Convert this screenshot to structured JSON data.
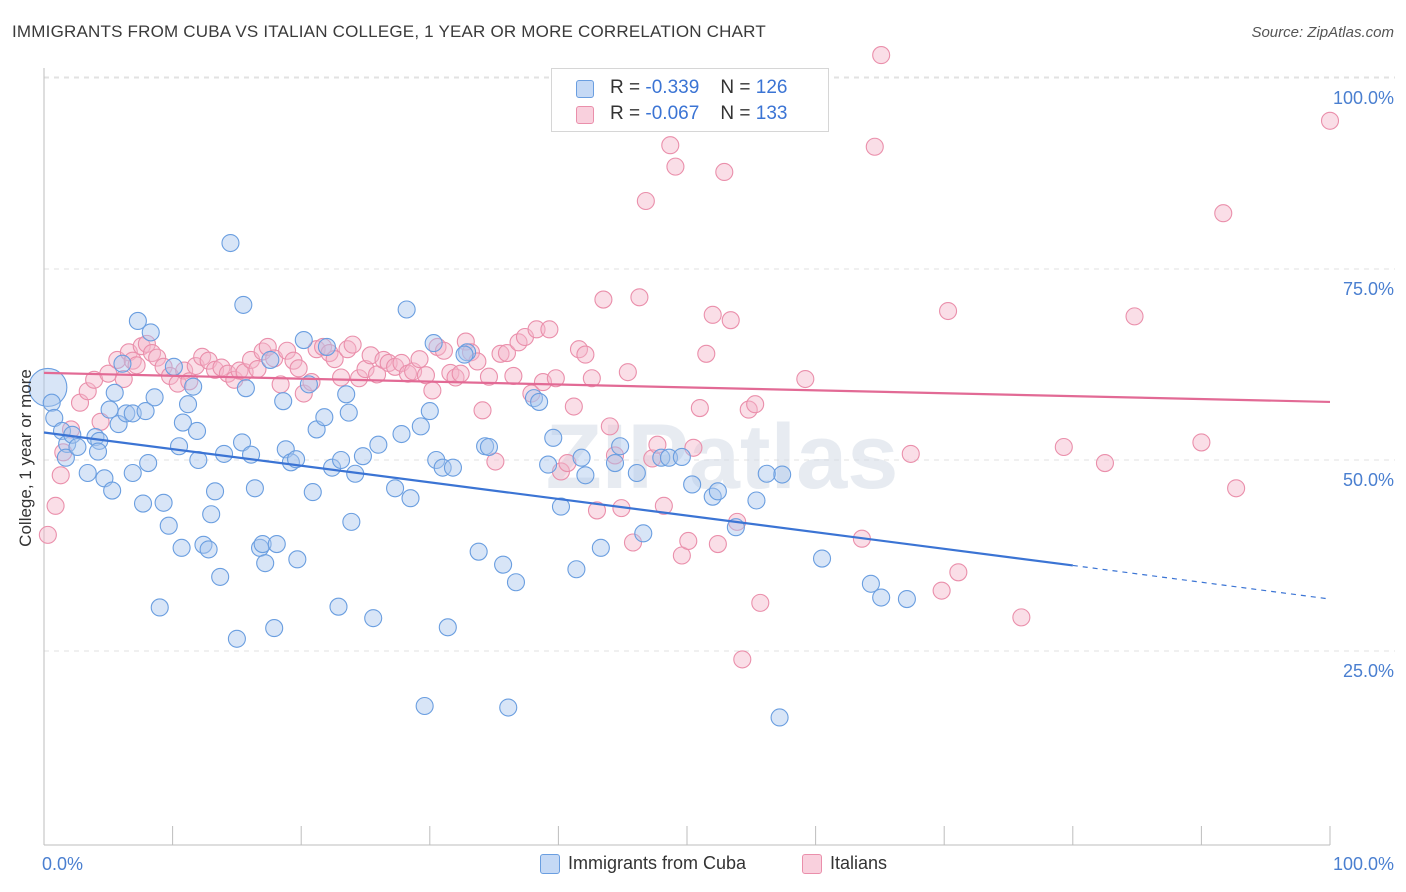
{
  "header": {
    "title": "IMMIGRANTS FROM CUBA VS ITALIAN COLLEGE, 1 YEAR OR MORE CORRELATION CHART",
    "source": "Source: ZipAtlas.com"
  },
  "legend": {
    "rows": [
      {
        "r_label": "R =",
        "r_value": "-0.339",
        "n_label": "N =",
        "n_value": "126"
      },
      {
        "r_label": "R =",
        "r_value": "-0.067",
        "n_label": "N =",
        "n_value": "133"
      }
    ]
  },
  "bottom_legend": [
    "Immigrants from Cuba",
    "Italians"
  ],
  "colors": {
    "blue_fill": "#a9c6ee",
    "blue_stroke": "#6a9ee0",
    "blue_line": "#3b74d4",
    "pink_fill": "#f5b5c9",
    "pink_stroke": "#ea8fab",
    "pink_line": "#e26a95",
    "tick_label": "#4a7fd0",
    "grid": "#e2e2e2"
  },
  "chart_data": {
    "type": "scatter",
    "title": "IMMIGRANTS FROM CUBA VS ITALIAN COLLEGE, 1 YEAR OR MORE CORRELATION CHART",
    "xlabel": "",
    "ylabel": "College, 1 year or more",
    "xlim": [
      0,
      100
    ],
    "ylim": [
      0,
      103
    ],
    "x_tick_labels": [
      "0.0%",
      "100.0%"
    ],
    "y_ticks": [
      25,
      50,
      75,
      100
    ],
    "y_tick_labels": [
      "25.0%",
      "50.0%",
      "75.0%",
      "100.0%"
    ],
    "grid": true,
    "legend_position": "top-center",
    "watermark": "ZIPatlas",
    "series": [
      {
        "name": "Immigrants from Cuba",
        "color": "#6a9ee0",
        "trend": {
          "x0": 0,
          "y0": 53.6,
          "x1": 80,
          "y1": 36.2,
          "dashed_to_x": 100,
          "dashed_y1": 31.8
        },
        "points": [
          [
            0.3,
            59.5
          ],
          [
            0.6,
            57.5
          ],
          [
            0.8,
            55.5
          ],
          [
            1.4,
            53.8
          ],
          [
            1.8,
            52.1
          ],
          [
            1.7,
            50.3
          ],
          [
            2.2,
            53.3
          ],
          [
            2.6,
            51.7
          ],
          [
            3.4,
            48.3
          ],
          [
            4.0,
            53.0
          ],
          [
            4.3,
            52.5
          ],
          [
            4.2,
            51.1
          ],
          [
            4.7,
            47.6
          ],
          [
            5.1,
            56.6
          ],
          [
            5.3,
            46.0
          ],
          [
            5.5,
            58.8
          ],
          [
            5.8,
            54.7
          ],
          [
            6.1,
            62.6
          ],
          [
            6.4,
            56.1
          ],
          [
            6.9,
            56.1
          ],
          [
            6.9,
            48.3
          ],
          [
            7.3,
            68.2
          ],
          [
            7.7,
            44.3
          ],
          [
            7.9,
            56.4
          ],
          [
            8.1,
            49.6
          ],
          [
            8.3,
            66.7
          ],
          [
            8.6,
            58.2
          ],
          [
            9.0,
            30.7
          ],
          [
            9.3,
            44.4
          ],
          [
            9.7,
            41.4
          ],
          [
            10.1,
            62.2
          ],
          [
            10.5,
            51.8
          ],
          [
            10.7,
            38.5
          ],
          [
            10.8,
            54.9
          ],
          [
            11.2,
            57.3
          ],
          [
            11.9,
            53.8
          ],
          [
            12.0,
            50.0
          ],
          [
            12.4,
            38.9
          ],
          [
            12.8,
            38.3
          ],
          [
            13.0,
            42.9
          ],
          [
            13.3,
            45.9
          ],
          [
            13.7,
            34.7
          ],
          [
            14.0,
            50.8
          ],
          [
            14.5,
            78.4
          ],
          [
            15.0,
            26.6
          ],
          [
            15.4,
            52.3
          ],
          [
            15.5,
            70.3
          ],
          [
            15.7,
            59.4
          ],
          [
            16.1,
            50.7
          ],
          [
            16.4,
            46.3
          ],
          [
            16.8,
            38.5
          ],
          [
            17.0,
            39.0
          ],
          [
            17.2,
            36.5
          ],
          [
            17.6,
            63.1
          ],
          [
            17.9,
            28.0
          ],
          [
            18.1,
            39.0
          ],
          [
            18.6,
            57.7
          ],
          [
            18.8,
            51.4
          ],
          [
            19.2,
            49.7
          ],
          [
            19.6,
            50.1
          ],
          [
            19.7,
            37.0
          ],
          [
            20.2,
            65.7
          ],
          [
            20.6,
            59.9
          ],
          [
            20.9,
            45.8
          ],
          [
            21.2,
            54.0
          ],
          [
            21.8,
            55.6
          ],
          [
            22.0,
            64.8
          ],
          [
            22.4,
            49.0
          ],
          [
            22.9,
            30.8
          ],
          [
            23.1,
            50.0
          ],
          [
            23.5,
            58.6
          ],
          [
            23.7,
            56.2
          ],
          [
            23.9,
            41.9
          ],
          [
            24.2,
            48.2
          ],
          [
            24.8,
            50.5
          ],
          [
            25.6,
            29.3
          ],
          [
            26.0,
            52.0
          ],
          [
            27.3,
            46.3
          ],
          [
            27.8,
            53.4
          ],
          [
            28.2,
            69.7
          ],
          [
            28.5,
            45.0
          ],
          [
            29.6,
            17.8
          ],
          [
            29.3,
            54.4
          ],
          [
            30.0,
            56.4
          ],
          [
            30.3,
            65.3
          ],
          [
            30.5,
            50.0
          ],
          [
            31.0,
            49.0
          ],
          [
            31.4,
            28.1
          ],
          [
            31.8,
            49.0
          ],
          [
            32.9,
            64.1
          ],
          [
            32.7,
            63.8
          ],
          [
            33.8,
            38.0
          ],
          [
            34.3,
            51.8
          ],
          [
            34.6,
            51.7
          ],
          [
            35.7,
            36.3
          ],
          [
            36.1,
            17.6
          ],
          [
            36.7,
            34.0
          ],
          [
            38.1,
            58.1
          ],
          [
            38.5,
            57.6
          ],
          [
            39.2,
            49.4
          ],
          [
            39.6,
            52.9
          ],
          [
            40.2,
            43.9
          ],
          [
            41.4,
            35.7
          ],
          [
            41.8,
            50.3
          ],
          [
            42.1,
            48.0
          ],
          [
            43.3,
            38.5
          ],
          [
            44.4,
            49.6
          ],
          [
            44.8,
            51.8
          ],
          [
            46.1,
            48.3
          ],
          [
            46.6,
            40.4
          ],
          [
            48.0,
            50.3
          ],
          [
            48.6,
            50.3
          ],
          [
            49.6,
            50.4
          ],
          [
            50.4,
            46.8
          ],
          [
            52.0,
            45.2
          ],
          [
            52.4,
            45.9
          ],
          [
            53.8,
            41.2
          ],
          [
            55.4,
            44.7
          ],
          [
            57.2,
            16.3
          ],
          [
            57.4,
            48.1
          ],
          [
            60.5,
            37.1
          ],
          [
            64.3,
            33.8
          ],
          [
            65.1,
            32.0
          ],
          [
            67.1,
            31.8
          ],
          [
            56.2,
            48.2
          ],
          [
            11.6,
            59.6
          ]
        ]
      },
      {
        "name": "Italians",
        "color": "#ea8fab",
        "trend": {
          "x0": 0,
          "y0": 61.4,
          "x1": 100,
          "y1": 57.6
        },
        "points": [
          [
            0.3,
            40.2
          ],
          [
            0.9,
            44.0
          ],
          [
            1.3,
            48.0
          ],
          [
            1.5,
            51.0
          ],
          [
            2.1,
            54.0
          ],
          [
            2.8,
            57.5
          ],
          [
            3.4,
            59.0
          ],
          [
            3.9,
            60.5
          ],
          [
            4.4,
            55.0
          ],
          [
            5.0,
            61.3
          ],
          [
            5.7,
            63.1
          ],
          [
            6.2,
            60.6
          ],
          [
            6.6,
            64.1
          ],
          [
            6.9,
            63.0
          ],
          [
            7.2,
            62.4
          ],
          [
            7.6,
            64.9
          ],
          [
            8.0,
            65.2
          ],
          [
            8.4,
            64.0
          ],
          [
            8.8,
            63.4
          ],
          [
            9.3,
            62.2
          ],
          [
            9.8,
            61.0
          ],
          [
            10.4,
            60.0
          ],
          [
            10.9,
            61.7
          ],
          [
            11.3,
            60.3
          ],
          [
            11.8,
            62.3
          ],
          [
            12.3,
            63.5
          ],
          [
            12.8,
            63.0
          ],
          [
            13.3,
            61.8
          ],
          [
            13.8,
            62.1
          ],
          [
            14.3,
            61.3
          ],
          [
            14.8,
            60.5
          ],
          [
            15.2,
            61.7
          ],
          [
            15.6,
            61.5
          ],
          [
            16.1,
            63.1
          ],
          [
            16.6,
            61.9
          ],
          [
            17.0,
            64.2
          ],
          [
            17.4,
            64.8
          ],
          [
            17.9,
            63.3
          ],
          [
            18.4,
            59.9
          ],
          [
            18.9,
            64.3
          ],
          [
            19.4,
            63.0
          ],
          [
            19.8,
            62.0
          ],
          [
            20.2,
            58.7
          ],
          [
            20.8,
            60.2
          ],
          [
            21.2,
            64.5
          ],
          [
            21.7,
            64.8
          ],
          [
            22.2,
            64.0
          ],
          [
            22.6,
            63.2
          ],
          [
            23.1,
            60.8
          ],
          [
            23.6,
            64.5
          ],
          [
            24.0,
            65.1
          ],
          [
            24.5,
            60.7
          ],
          [
            25.0,
            61.9
          ],
          [
            25.4,
            63.7
          ],
          [
            25.9,
            61.2
          ],
          [
            26.4,
            63.1
          ],
          [
            26.8,
            62.7
          ],
          [
            27.3,
            62.2
          ],
          [
            27.8,
            62.7
          ],
          [
            28.3,
            61.3
          ],
          [
            28.7,
            61.6
          ],
          [
            29.2,
            63.2
          ],
          [
            29.7,
            61.1
          ],
          [
            30.2,
            59.1
          ],
          [
            30.6,
            64.8
          ],
          [
            31.1,
            64.3
          ],
          [
            31.6,
            61.4
          ],
          [
            32.0,
            60.8
          ],
          [
            32.4,
            61.3
          ],
          [
            32.8,
            65.5
          ],
          [
            33.2,
            64.1
          ],
          [
            33.7,
            62.9
          ],
          [
            34.1,
            56.5
          ],
          [
            34.6,
            60.9
          ],
          [
            35.1,
            49.8
          ],
          [
            35.5,
            63.9
          ],
          [
            36.0,
            64.0
          ],
          [
            36.5,
            61.0
          ],
          [
            36.9,
            65.4
          ],
          [
            37.4,
            66.1
          ],
          [
            37.9,
            58.7
          ],
          [
            38.3,
            67.1
          ],
          [
            38.8,
            60.2
          ],
          [
            39.3,
            67.1
          ],
          [
            39.8,
            60.7
          ],
          [
            40.2,
            48.5
          ],
          [
            40.7,
            49.6
          ],
          [
            41.2,
            57.0
          ],
          [
            41.6,
            64.5
          ],
          [
            42.1,
            63.8
          ],
          [
            42.6,
            60.7
          ],
          [
            43.0,
            43.4
          ],
          [
            43.5,
            71.0
          ],
          [
            44.0,
            54.4
          ],
          [
            44.4,
            50.6
          ],
          [
            44.9,
            43.7
          ],
          [
            45.4,
            61.5
          ],
          [
            45.8,
            39.2
          ],
          [
            46.3,
            71.3
          ],
          [
            46.8,
            83.9
          ],
          [
            47.3,
            50.2
          ],
          [
            47.7,
            52.0
          ],
          [
            48.2,
            44.0
          ],
          [
            48.7,
            91.2
          ],
          [
            49.1,
            88.4
          ],
          [
            49.6,
            37.5
          ],
          [
            50.1,
            39.4
          ],
          [
            50.5,
            51.6
          ],
          [
            51.0,
            56.8
          ],
          [
            51.5,
            63.9
          ],
          [
            52.0,
            69.0
          ],
          [
            52.4,
            39.0
          ],
          [
            52.9,
            87.7
          ],
          [
            53.4,
            68.3
          ],
          [
            53.9,
            41.9
          ],
          [
            54.3,
            23.9
          ],
          [
            54.8,
            56.6
          ],
          [
            55.3,
            57.3
          ],
          [
            55.7,
            31.3
          ],
          [
            59.2,
            60.6
          ],
          [
            63.6,
            39.7
          ],
          [
            64.6,
            91.0
          ],
          [
            65.1,
            103.0
          ],
          [
            67.4,
            50.8
          ],
          [
            69.8,
            32.9
          ],
          [
            70.3,
            69.5
          ],
          [
            71.1,
            35.3
          ],
          [
            76.0,
            29.4
          ],
          [
            79.3,
            51.7
          ],
          [
            82.5,
            49.6
          ],
          [
            84.8,
            68.8
          ],
          [
            90.0,
            52.3
          ],
          [
            91.7,
            82.3
          ],
          [
            92.7,
            46.3
          ],
          [
            100.0,
            94.4
          ]
        ]
      }
    ]
  }
}
